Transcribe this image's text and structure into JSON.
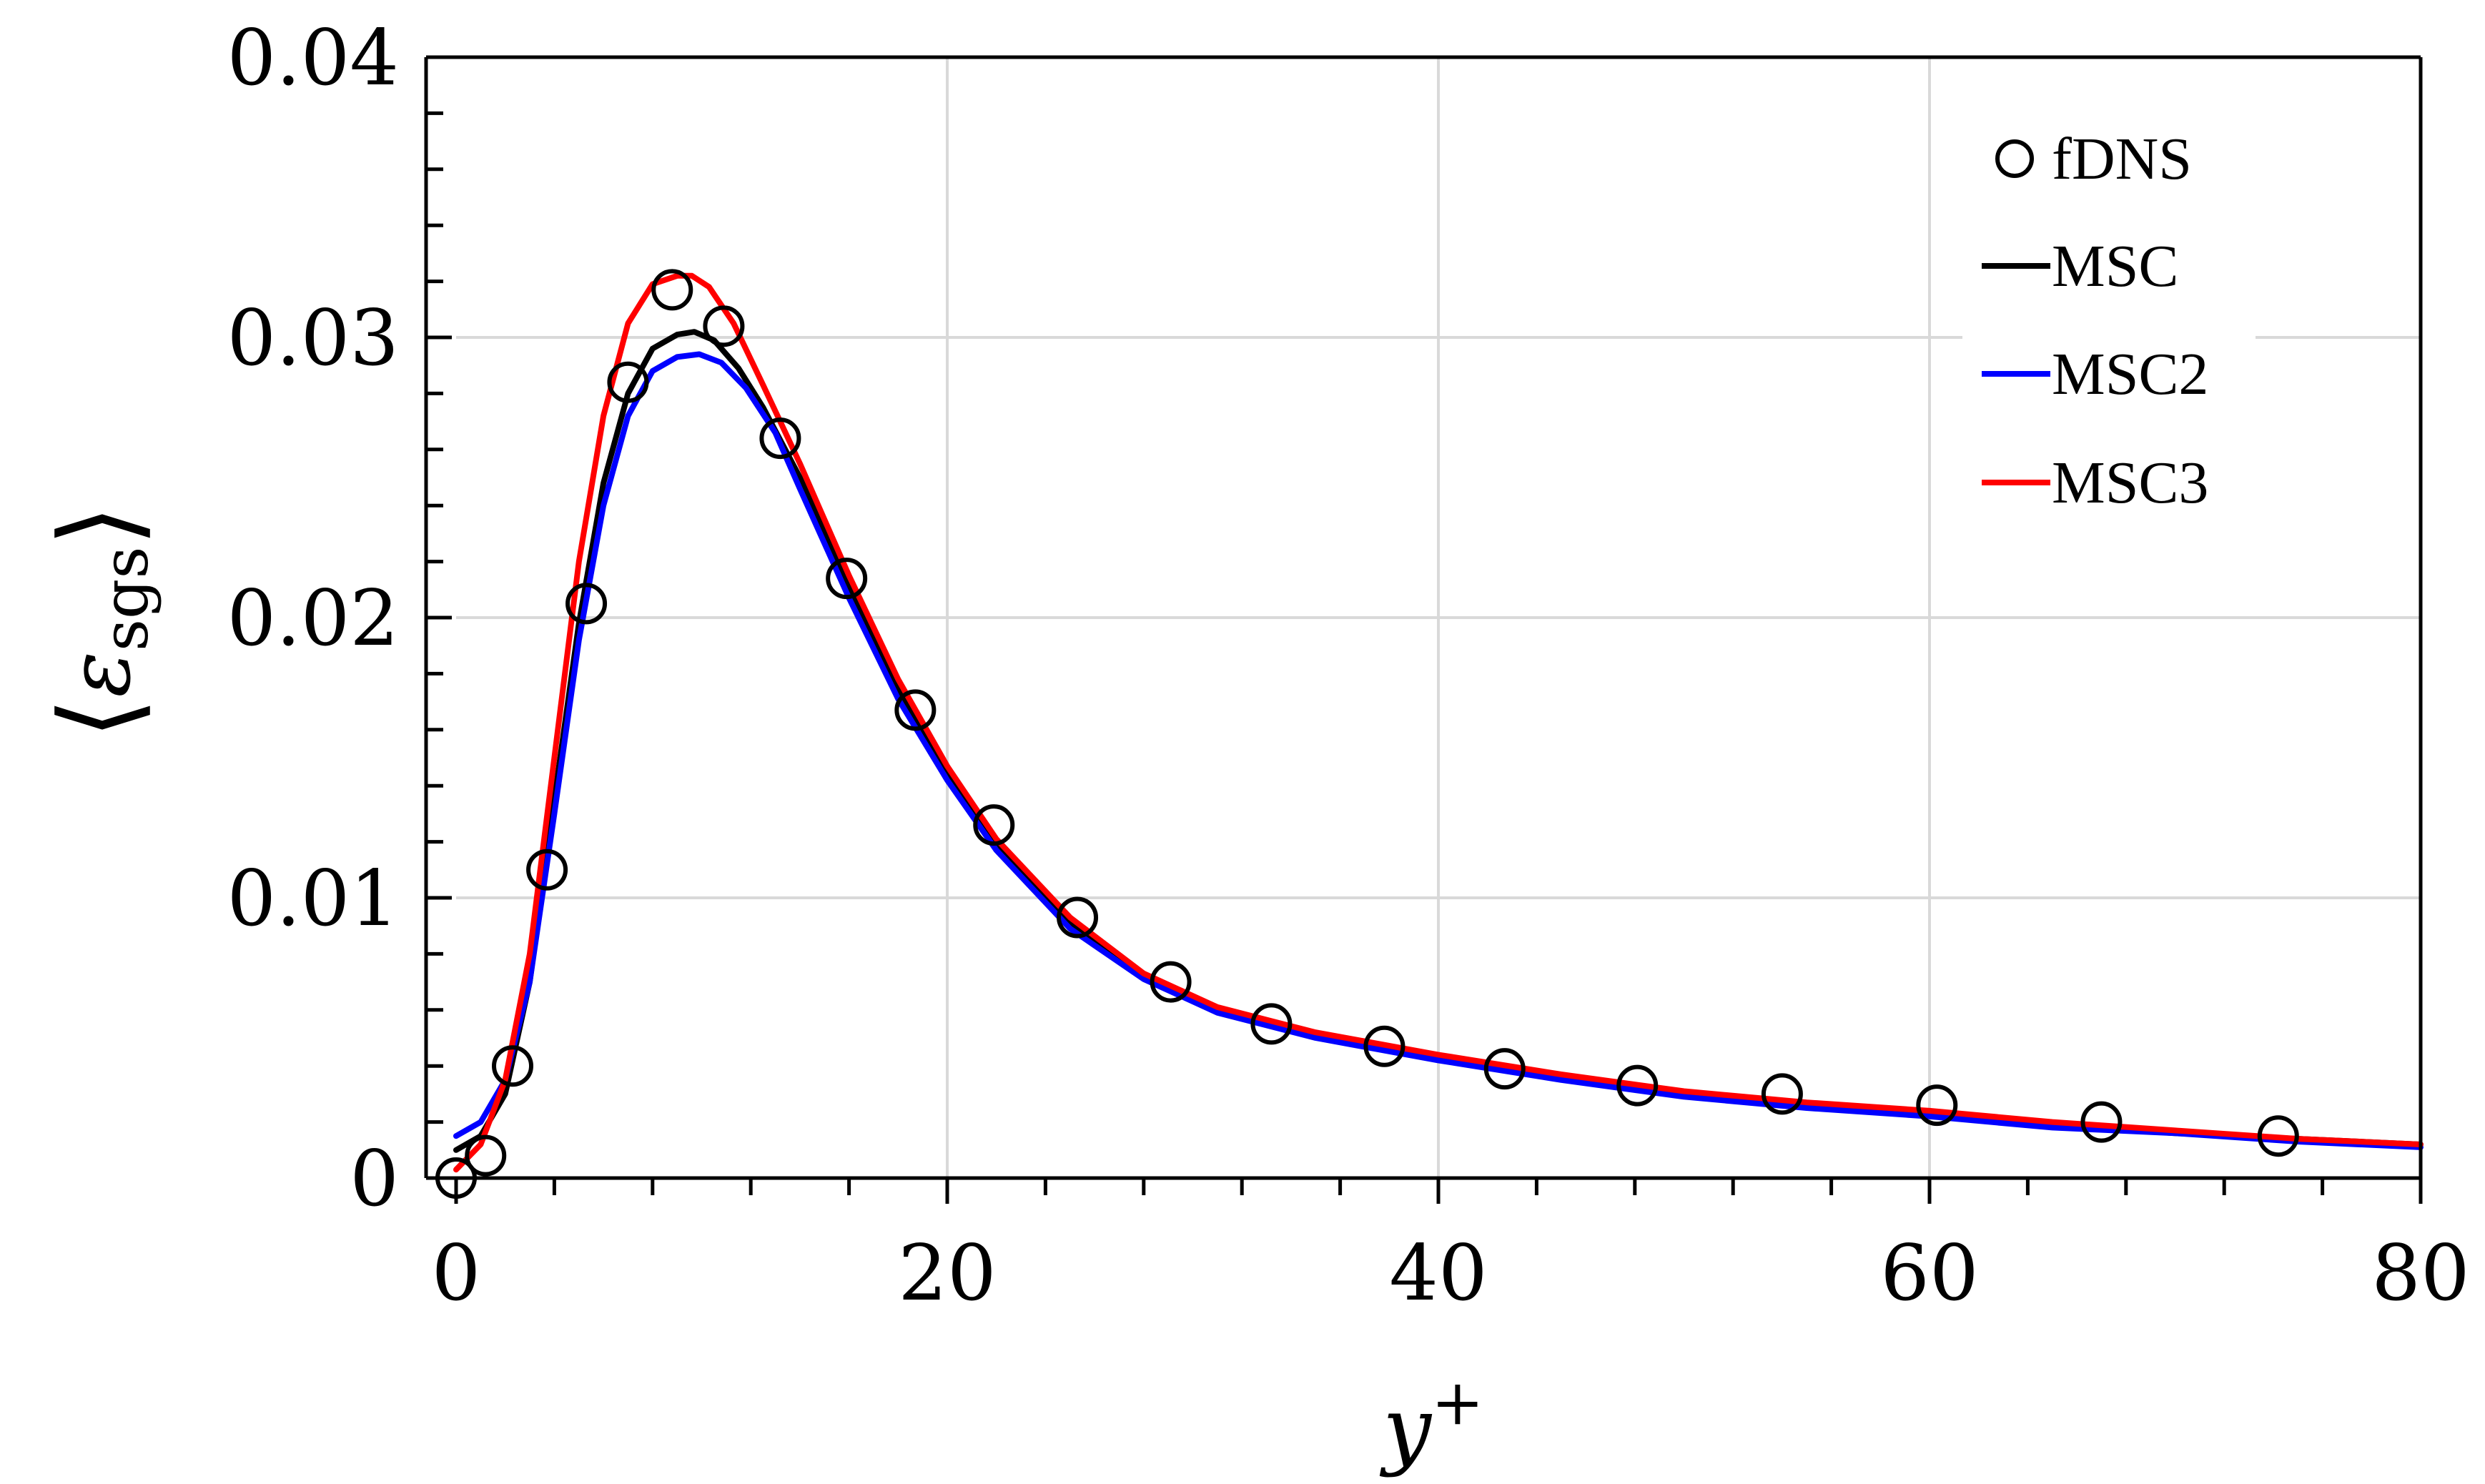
{
  "chart_data": {
    "type": "line",
    "xlabel_main": "y",
    "xlabel_sup": "+",
    "ylabel_main": "ε",
    "ylabel_sub": "sgs",
    "xlim": [
      0,
      80
    ],
    "ylim": [
      0,
      0.04
    ],
    "xticks": [
      0,
      20,
      40,
      60,
      80
    ],
    "xtick_labels": [
      "0",
      "20",
      "40",
      "60",
      "80"
    ],
    "yticks": [
      0,
      0.01,
      0.02,
      0.03,
      0.04
    ],
    "ytick_labels": [
      "0",
      "0.01",
      "0.02",
      "0.03",
      "0.04"
    ],
    "grid": true,
    "legend_position": "top-right",
    "colors": {
      "fDNS": "#000000",
      "MSC": "#000000",
      "MSC2": "#0000ff",
      "MSC3": "#ff0000",
      "grid": "#d9d9d9"
    },
    "series": [
      {
        "name": "fDNS",
        "style": "markers",
        "x": [
          0,
          1.2,
          2.3,
          3.7,
          5.3,
          7.0,
          8.8,
          10.9,
          13.2,
          15.9,
          18.7,
          21.9,
          25.3,
          29.1,
          33.2,
          37.8,
          42.7,
          48.1,
          54.0,
          60.3,
          67.0,
          74.2
        ],
        "y": [
          0,
          0.0008,
          0.004,
          0.011,
          0.0205,
          0.0284,
          0.0317,
          0.0304,
          0.0264,
          0.0214,
          0.0167,
          0.0126,
          0.0093,
          0.007,
          0.0055,
          0.0047,
          0.0039,
          0.0033,
          0.003,
          0.0026,
          0.002,
          0.0015
        ]
      },
      {
        "name": "MSC",
        "style": "line",
        "x": [
          0,
          1,
          2,
          3,
          4,
          5,
          6,
          7,
          8,
          9,
          9.7,
          10.5,
          11.5,
          12.5,
          14,
          16,
          18,
          20,
          22,
          25,
          28,
          31,
          35,
          40,
          45,
          50,
          55,
          60,
          65,
          70,
          75,
          80
        ],
        "y": [
          0.001,
          0.0015,
          0.003,
          0.007,
          0.0135,
          0.0198,
          0.0248,
          0.028,
          0.0296,
          0.0301,
          0.0302,
          0.0299,
          0.0289,
          0.0275,
          0.025,
          0.0211,
          0.0175,
          0.0145,
          0.0119,
          0.0091,
          0.0072,
          0.006,
          0.0051,
          0.0043,
          0.0036,
          0.003,
          0.0026,
          0.0023,
          0.0019,
          0.0016,
          0.0014,
          0.0012
        ]
      },
      {
        "name": "MSC2",
        "style": "line",
        "x": [
          0,
          1,
          2,
          3,
          4,
          5,
          6,
          7,
          8,
          9,
          9.9,
          10.8,
          11.8,
          13,
          14,
          16,
          18,
          20,
          22,
          25,
          28,
          31,
          35,
          40,
          45,
          50,
          55,
          60,
          65,
          70,
          75,
          80
        ],
        "y": [
          0.0015,
          0.002,
          0.0035,
          0.007,
          0.013,
          0.0192,
          0.024,
          0.0272,
          0.0288,
          0.0293,
          0.0294,
          0.0291,
          0.0282,
          0.0266,
          0.0246,
          0.0207,
          0.0171,
          0.0142,
          0.0117,
          0.0089,
          0.0071,
          0.0059,
          0.005,
          0.0042,
          0.0035,
          0.0029,
          0.0025,
          0.0022,
          0.0018,
          0.0016,
          0.0013,
          0.0011
        ]
      },
      {
        "name": "MSC3",
        "style": "line",
        "x": [
          0,
          1,
          2,
          3,
          4,
          5,
          6,
          7,
          8,
          9,
          9.6,
          10.3,
          11.3,
          12.5,
          14,
          16,
          18,
          20,
          22,
          25,
          28,
          31,
          35,
          40,
          45,
          50,
          55,
          60,
          65,
          70,
          75,
          80
        ],
        "y": [
          0.0003,
          0.0012,
          0.0035,
          0.008,
          0.015,
          0.022,
          0.0272,
          0.0305,
          0.0319,
          0.0322,
          0.0322,
          0.0318,
          0.0305,
          0.0283,
          0.0255,
          0.0215,
          0.0178,
          0.0147,
          0.0121,
          0.0093,
          0.0073,
          0.0061,
          0.0052,
          0.0044,
          0.0037,
          0.0031,
          0.0027,
          0.0024,
          0.002,
          0.0017,
          0.0014,
          0.0012
        ]
      }
    ]
  }
}
